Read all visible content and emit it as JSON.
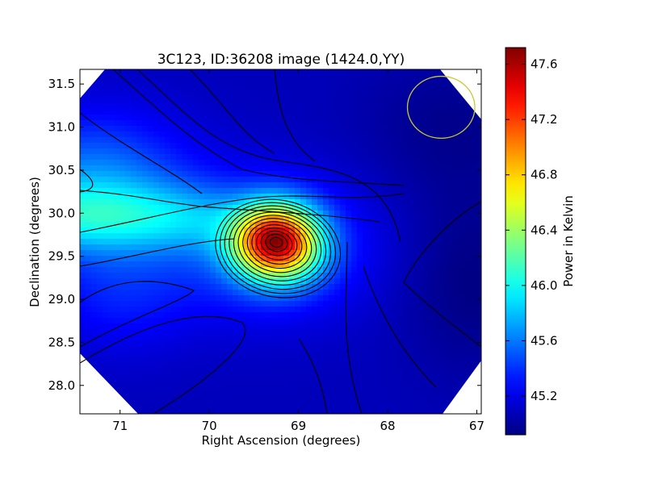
{
  "chart_data": {
    "type": "heatmap",
    "title": "3C123, ID:36208 image (1424.0,YY)",
    "xlabel": "Right Ascension (degrees)",
    "ylabel": "Declination (degrees)",
    "x_axis_inverted": true,
    "xlim": [
      71.45,
      66.95
    ],
    "ylim": [
      27.67,
      31.67
    ],
    "xticks": [
      {
        "value": 71,
        "label": "71"
      },
      {
        "value": 70,
        "label": "70"
      },
      {
        "value": 69,
        "label": "69"
      },
      {
        "value": 68,
        "label": "68"
      },
      {
        "value": 67,
        "label": "67"
      }
    ],
    "yticks": [
      {
        "value": 28.0,
        "label": "28.0"
      },
      {
        "value": 28.5,
        "label": "28.5"
      },
      {
        "value": 29.0,
        "label": "29.0"
      },
      {
        "value": 29.5,
        "label": "29.5"
      },
      {
        "value": 30.0,
        "label": "30.0"
      },
      {
        "value": 30.5,
        "label": "30.5"
      },
      {
        "value": 31.0,
        "label": "31.0"
      },
      {
        "value": 31.5,
        "label": "31.5"
      }
    ],
    "colorbar": {
      "label": "Power in Kelvin",
      "range": [
        44.92,
        47.72
      ],
      "colormap": "jet",
      "ticks": [
        {
          "value": 45.2,
          "label": "45.2"
        },
        {
          "value": 45.6,
          "label": "45.6"
        },
        {
          "value": 46.0,
          "label": "46.0"
        },
        {
          "value": 46.4,
          "label": "46.4"
        },
        {
          "value": 46.8,
          "label": "46.8"
        },
        {
          "value": 47.2,
          "label": "47.2"
        },
        {
          "value": 47.6,
          "label": "47.6"
        }
      ]
    },
    "features": [
      {
        "kind": "peak",
        "ra": 69.25,
        "dec": 29.67,
        "value": 47.7
      },
      {
        "kind": "secondary-maximum",
        "ra": 71.3,
        "dec": 30.35,
        "value": 46.1
      },
      {
        "kind": "minimum",
        "ra": 67.05,
        "dec": 29.2,
        "value": 44.95
      }
    ],
    "beam_circle": {
      "ra": 67.4,
      "dec": 31.23,
      "radius_deg": 0.36,
      "color": "#c8c832"
    },
    "grid": false
  }
}
